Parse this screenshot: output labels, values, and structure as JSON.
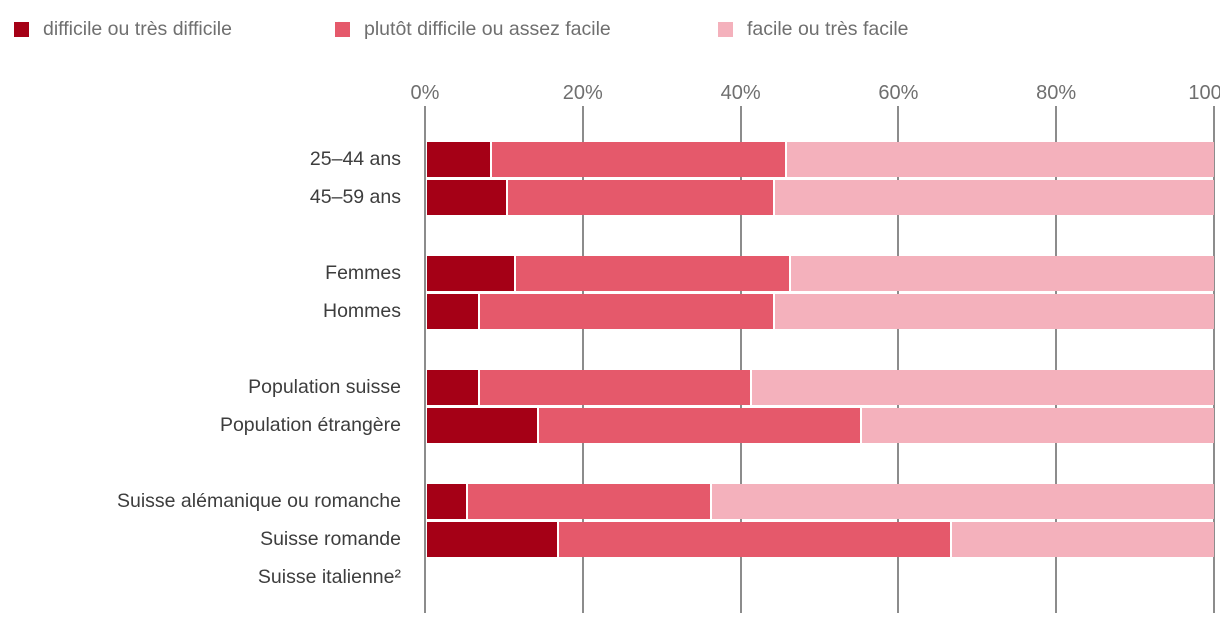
{
  "legend": {
    "items": [
      {
        "label": "difficile ou très difficile",
        "color": "#A50016"
      },
      {
        "label": "plutôt difficile ou assez facile",
        "color": "#E5596B"
      },
      {
        "label": "facile ou très facile",
        "color": "#F4B1BC"
      }
    ]
  },
  "chart_data": {
    "type": "bar",
    "orientation": "horizontal",
    "stacked": true,
    "unit": "percent",
    "xlim": [
      0,
      100
    ],
    "x_ticks": [
      {
        "value": 0,
        "label": "0%"
      },
      {
        "value": 20,
        "label": "20%"
      },
      {
        "value": 40,
        "label": "40%"
      },
      {
        "value": 60,
        "label": "60%"
      },
      {
        "value": 80,
        "label": "80%"
      },
      {
        "value": 100,
        "label": "100%"
      }
    ],
    "series": [
      {
        "name": "difficile ou très difficile",
        "color": "#A50016"
      },
      {
        "name": "plutôt difficile ou assez facile",
        "color": "#E5596B"
      },
      {
        "name": "facile ou très facile",
        "color": "#F4B1BC"
      }
    ],
    "groups": [
      {
        "rows": [
          {
            "label": "25–44 ans",
            "values": [
              8,
              37.5,
              54.5
            ]
          },
          {
            "label": "45–59 ans",
            "values": [
              10,
              34,
              56
            ]
          }
        ]
      },
      {
        "rows": [
          {
            "label": "Femmes",
            "values": [
              11,
              35,
              54
            ]
          },
          {
            "label": "Hommes",
            "values": [
              6.5,
              37.5,
              56
            ]
          }
        ]
      },
      {
        "rows": [
          {
            "label": "Population suisse",
            "values": [
              6.5,
              34.5,
              59
            ]
          },
          {
            "label": "Population étrangère",
            "values": [
              14,
              41,
              45
            ]
          }
        ]
      },
      {
        "rows": [
          {
            "label": "Suisse alémanique ou romanche",
            "values": [
              5,
              31,
              64
            ]
          },
          {
            "label": "Suisse romande",
            "values": [
              16.5,
              50,
              33.5
            ]
          },
          {
            "label": "Suisse italienne²",
            "values": null
          }
        ]
      }
    ],
    "style": {
      "gridline_color": "#8c8c8c",
      "label_color": "#3d3d3d",
      "axis_text_color": "#6f6f6f"
    }
  }
}
